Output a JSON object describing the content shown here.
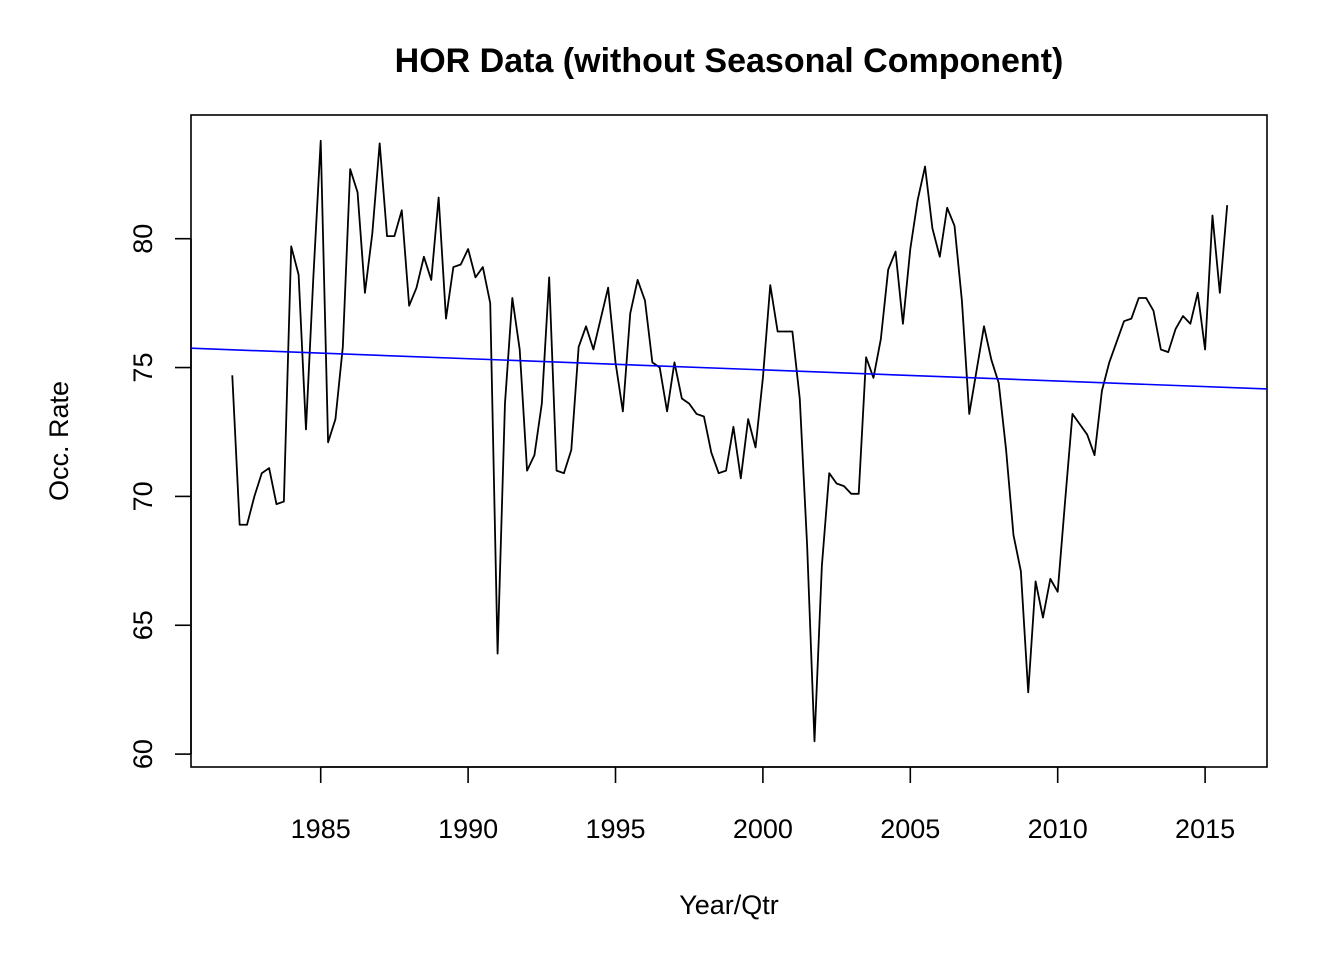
{
  "chart_data": {
    "type": "line",
    "title": "HOR Data (without Seasonal Component)",
    "xlabel": "Year/Qtr",
    "ylabel": "Occ. Rate",
    "xlim": [
      1980.6,
      2017.1
    ],
    "ylim": [
      59.5,
      84.8
    ],
    "xticks": [
      1985,
      1990,
      1995,
      2000,
      2005,
      2010,
      2015
    ],
    "yticks": [
      60,
      65,
      70,
      75,
      80
    ],
    "grid": false,
    "series": [
      {
        "color": "#000000",
        "x": [
          1982.0,
          1982.25,
          1982.5,
          1982.75,
          1983.0,
          1983.25,
          1983.5,
          1983.75,
          1984.0,
          1984.25,
          1984.5,
          1984.75,
          1985.0,
          1985.25,
          1985.5,
          1985.75,
          1986.0,
          1986.25,
          1986.5,
          1986.75,
          1987.0,
          1987.25,
          1987.5,
          1987.75,
          1988.0,
          1988.25,
          1988.5,
          1988.75,
          1989.0,
          1989.25,
          1989.5,
          1989.75,
          1990.0,
          1990.25,
          1990.5,
          1990.75,
          1991.0,
          1991.25,
          1991.5,
          1991.75,
          1992.0,
          1992.25,
          1992.5,
          1992.75,
          1993.0,
          1993.25,
          1993.5,
          1993.75,
          1994.0,
          1994.25,
          1994.5,
          1994.75,
          1995.0,
          1995.25,
          1995.5,
          1995.75,
          1996.0,
          1996.25,
          1996.5,
          1996.75,
          1997.0,
          1997.25,
          1997.5,
          1997.75,
          1998.0,
          1998.25,
          1998.5,
          1998.75,
          1999.0,
          1999.25,
          1999.5,
          1999.75,
          2000.0,
          2000.25,
          2000.5,
          2000.75,
          2001.0,
          2001.25,
          2001.5,
          2001.75,
          2002.0,
          2002.25,
          2002.5,
          2002.75,
          2003.0,
          2003.25,
          2003.5,
          2003.75,
          2004.0,
          2004.25,
          2004.5,
          2004.75,
          2005.0,
          2005.25,
          2005.5,
          2005.75,
          2006.0,
          2006.25,
          2006.5,
          2006.75,
          2007.0,
          2007.25,
          2007.5,
          2007.75,
          2008.0,
          2008.25,
          2008.5,
          2008.75,
          2009.0,
          2009.25,
          2009.5,
          2009.75,
          2010.0,
          2010.25,
          2010.5,
          2010.75,
          2011.0,
          2011.25,
          2011.5,
          2011.75,
          2012.0,
          2012.25,
          2012.5,
          2012.75,
          2013.0,
          2013.25,
          2013.5,
          2013.75,
          2014.0,
          2014.25,
          2014.5,
          2014.75,
          2015.0,
          2015.25,
          2015.5,
          2015.75
        ],
        "y": [
          74.7,
          68.9,
          68.9,
          70.0,
          70.9,
          71.1,
          69.7,
          69.8,
          79.7,
          78.6,
          72.6,
          78.5,
          83.8,
          72.1,
          73.0,
          75.8,
          82.7,
          81.8,
          77.9,
          80.2,
          83.7,
          80.1,
          80.1,
          81.1,
          77.4,
          78.1,
          79.3,
          78.4,
          81.6,
          76.9,
          78.9,
          79.0,
          79.6,
          78.5,
          78.9,
          77.5,
          63.9,
          73.6,
          77.7,
          75.7,
          71.0,
          71.6,
          73.6,
          78.5,
          71.0,
          70.9,
          71.8,
          75.8,
          76.6,
          75.7,
          76.9,
          78.1,
          75.2,
          73.3,
          77.1,
          78.4,
          77.6,
          75.2,
          75.0,
          73.3,
          75.2,
          73.8,
          73.6,
          73.2,
          73.1,
          71.7,
          70.9,
          71.0,
          72.7,
          70.7,
          73.0,
          71.9,
          74.6,
          78.2,
          76.4,
          76.4,
          76.4,
          73.8,
          68.1,
          60.5,
          67.3,
          70.9,
          70.5,
          70.4,
          70.1,
          70.1,
          75.4,
          74.6,
          76.1,
          78.8,
          79.5,
          76.7,
          79.6,
          81.5,
          82.8,
          80.4,
          79.3,
          81.2,
          80.5,
          77.6,
          73.2,
          74.9,
          76.6,
          75.3,
          74.4,
          71.8,
          68.5,
          67.1,
          62.4,
          66.7,
          65.3,
          66.8,
          66.3,
          69.8,
          73.2,
          72.8,
          72.4,
          71.6,
          74.1,
          75.2,
          76.0,
          76.8,
          76.9,
          77.7,
          77.7,
          77.2,
          75.7,
          75.6,
          76.5,
          77.0,
          76.7,
          77.9,
          75.7,
          80.9,
          77.9,
          81.3
        ]
      }
    ],
    "trend_line": {
      "color": "#0000ff",
      "x": [
        1980.6,
        2017.1
      ],
      "y": [
        75.75,
        74.17
      ]
    }
  }
}
